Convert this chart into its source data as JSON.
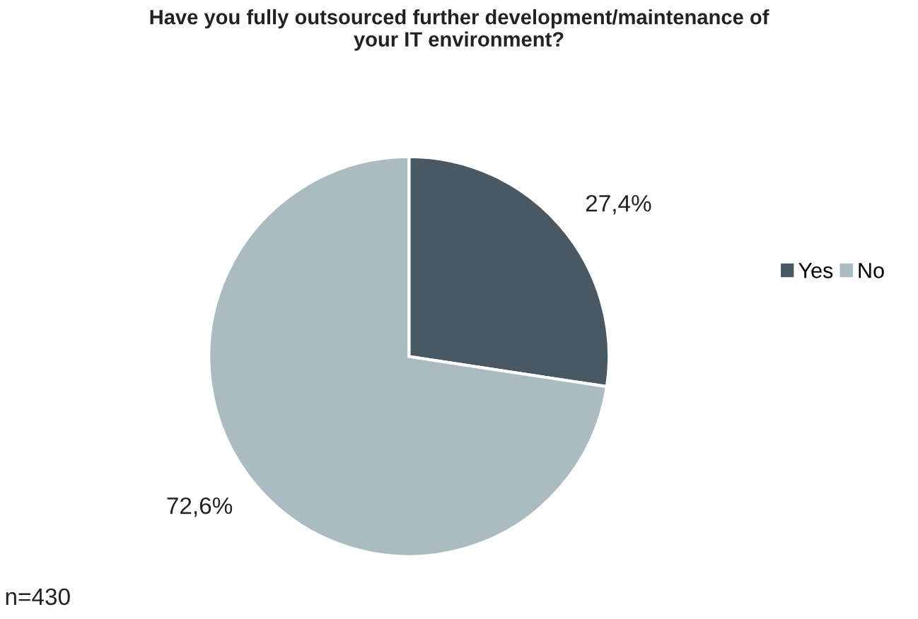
{
  "chart_data": {
    "type": "pie",
    "title": "Have you fully outsourced further development/maintenance of\nyour IT environment?",
    "categories": [
      "Yes",
      "No"
    ],
    "values": [
      27.4,
      72.6
    ],
    "colors": [
      "#4a5863",
      "#aabcc2"
    ],
    "value_labels": [
      "27,4%",
      "72,6%"
    ],
    "legend": "right",
    "annotations": [
      "n=430"
    ]
  }
}
